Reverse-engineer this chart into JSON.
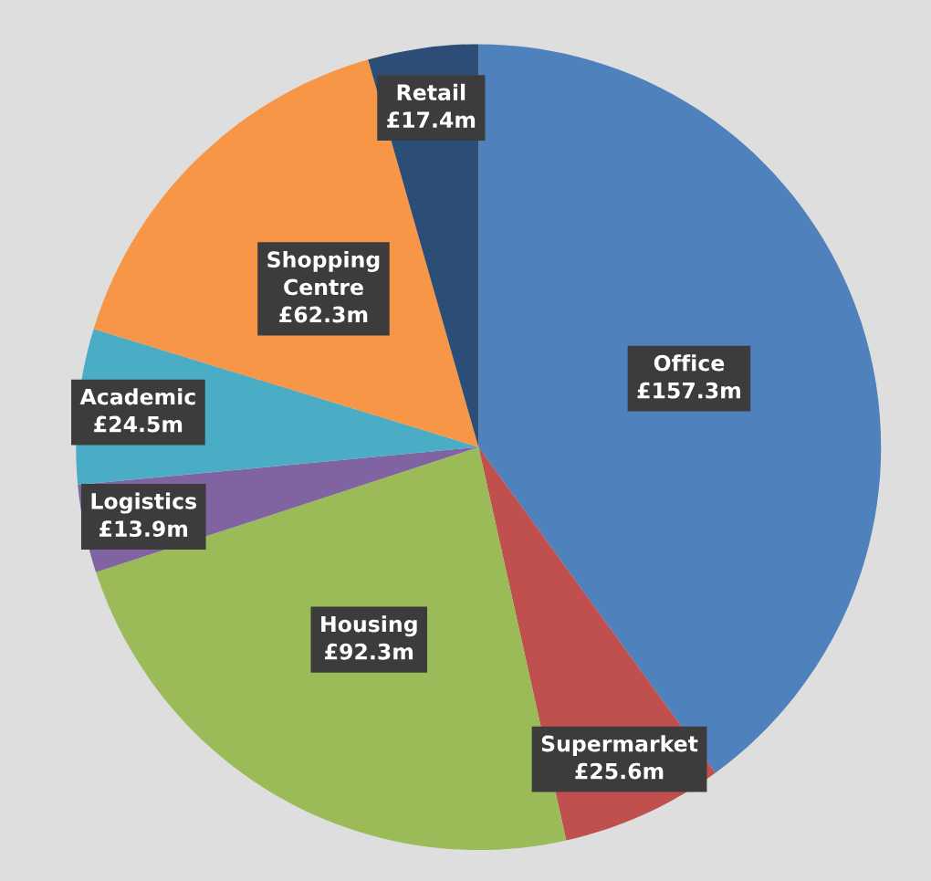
{
  "chart_data": {
    "type": "pie",
    "categories": [
      "Office",
      "Supermarket",
      "Housing",
      "Logistics",
      "Academic",
      "Shopping Centre",
      "Retail"
    ],
    "values": [
      157.3,
      25.6,
      92.3,
      13.9,
      24.5,
      62.3,
      17.4
    ],
    "value_labels": [
      "£157.3m",
      "£25.6m",
      "£92.3m",
      "£13.9m",
      "£24.5m",
      "£62.3m",
      "£17.4m"
    ],
    "colors": [
      "#4f81bd",
      "#c0504d",
      "#9bbb59",
      "#8064a2",
      "#4bacc6",
      "#f79646",
      "#2c4d75"
    ]
  }
}
